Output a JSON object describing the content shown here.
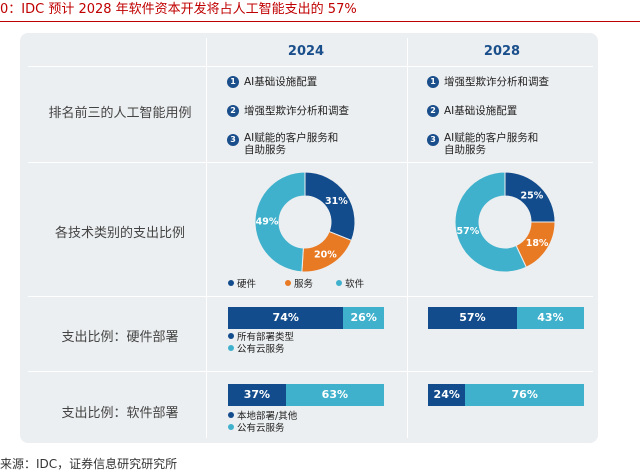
{
  "figure_title": "0：IDC 预计 2028 年软件资本开发将占人工智能支出的 57%",
  "source": "来源：IDC，证券信息研究研究所",
  "colors": {
    "navy": "#134c8c",
    "orange": "#e97a24",
    "teal": "#3fb1cc",
    "title": "#c00000",
    "panel": "#eceff1"
  },
  "chart_data": [
    {
      "type": "table",
      "title": "排名前三的人工智能用例",
      "columns": [
        "2024",
        "2028"
      ],
      "rows": [
        {
          "rank": "1",
          "items": [
            "AI基础设施配置",
            "增强型欺诈分析和调查"
          ]
        },
        {
          "rank": "2",
          "items": [
            "增强型欺诈分析和调查",
            "AI基础设施配置"
          ]
        },
        {
          "rank": "3",
          "items": [
            "AI赋能的客户服务和自助服务",
            "AI赋能的客户服务和自助服务"
          ]
        }
      ]
    },
    {
      "type": "pie",
      "title": "各技术类别的支出比例",
      "categories": [
        "硬件",
        "服务",
        "软件"
      ],
      "series": [
        {
          "name": "2024",
          "values": [
            31,
            20,
            49
          ],
          "labels": [
            "31%",
            "20%",
            "49%"
          ]
        },
        {
          "name": "2028",
          "values": [
            25,
            18,
            57
          ],
          "labels": [
            "25%",
            "18%",
            "57%"
          ]
        }
      ]
    },
    {
      "type": "bar",
      "title": "支出比例：硬件部署",
      "categories": [
        "所有部署类型",
        "公有云服务"
      ],
      "series": [
        {
          "name": "2024",
          "values": [
            74,
            26
          ],
          "labels": [
            "74%",
            "26%"
          ]
        },
        {
          "name": "2028",
          "values": [
            57,
            43
          ],
          "labels": [
            "57%",
            "43%"
          ]
        }
      ]
    },
    {
      "type": "bar",
      "title": "支出比例：软件部署",
      "categories": [
        "本地部署/其他",
        "公有云服务"
      ],
      "series": [
        {
          "name": "2024",
          "values": [
            37,
            63
          ],
          "labels": [
            "37%",
            "63%"
          ]
        },
        {
          "name": "2028",
          "values": [
            24,
            76
          ],
          "labels": [
            "24%",
            "76%"
          ]
        }
      ]
    }
  ]
}
